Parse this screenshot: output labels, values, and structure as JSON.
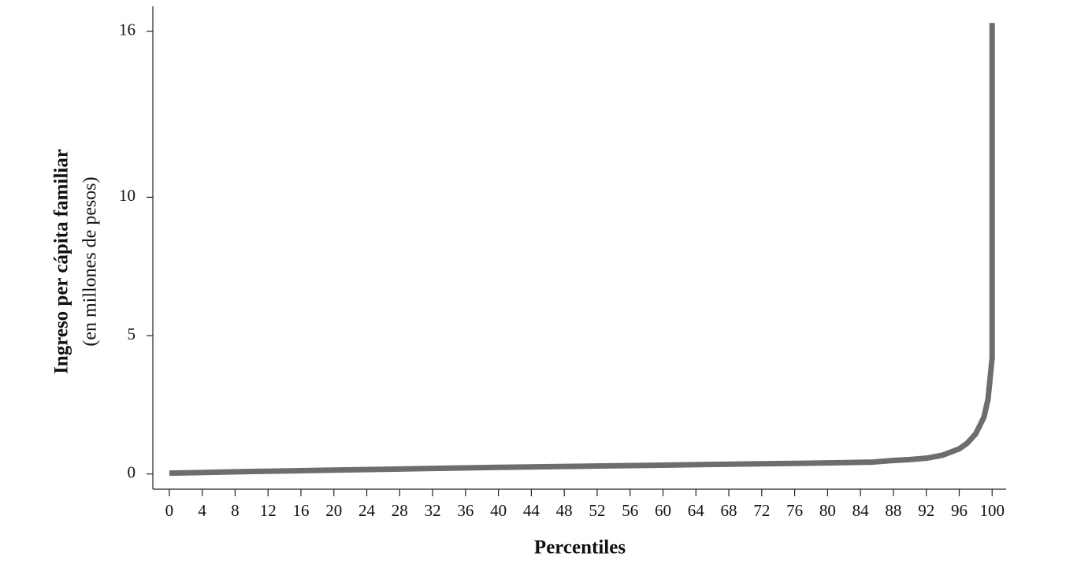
{
  "chart_data": {
    "type": "line",
    "xlabel": "Percentiles",
    "ylabel": "Ingreso per cápita familiar",
    "ylabel_note": "(en millones de pesos)",
    "x": [
      0,
      10,
      20,
      30,
      40,
      50,
      60,
      70,
      80,
      85.5,
      88,
      90,
      92,
      94,
      96,
      97,
      98,
      99,
      99.5,
      100,
      100
    ],
    "series": [
      {
        "color": "#6d6d70",
        "values": [
          0.03,
          0.09,
          0.14,
          0.19,
          0.24,
          0.28,
          0.32,
          0.36,
          0.4,
          0.43,
          0.49,
          0.52,
          0.57,
          0.68,
          0.91,
          1.12,
          1.45,
          2.05,
          2.7,
          4.2,
          16.3
        ]
      }
    ],
    "xlim": [
      -2,
      101.7
    ],
    "ylim": [
      -0.55,
      16.9
    ],
    "xticks": [
      0,
      4,
      8,
      12,
      16,
      20,
      24,
      28,
      32,
      36,
      40,
      44,
      48,
      52,
      56,
      60,
      64,
      68,
      72,
      76,
      80,
      84,
      88,
      92,
      96,
      100
    ],
    "yticks": [
      0,
      5,
      10,
      16
    ]
  }
}
